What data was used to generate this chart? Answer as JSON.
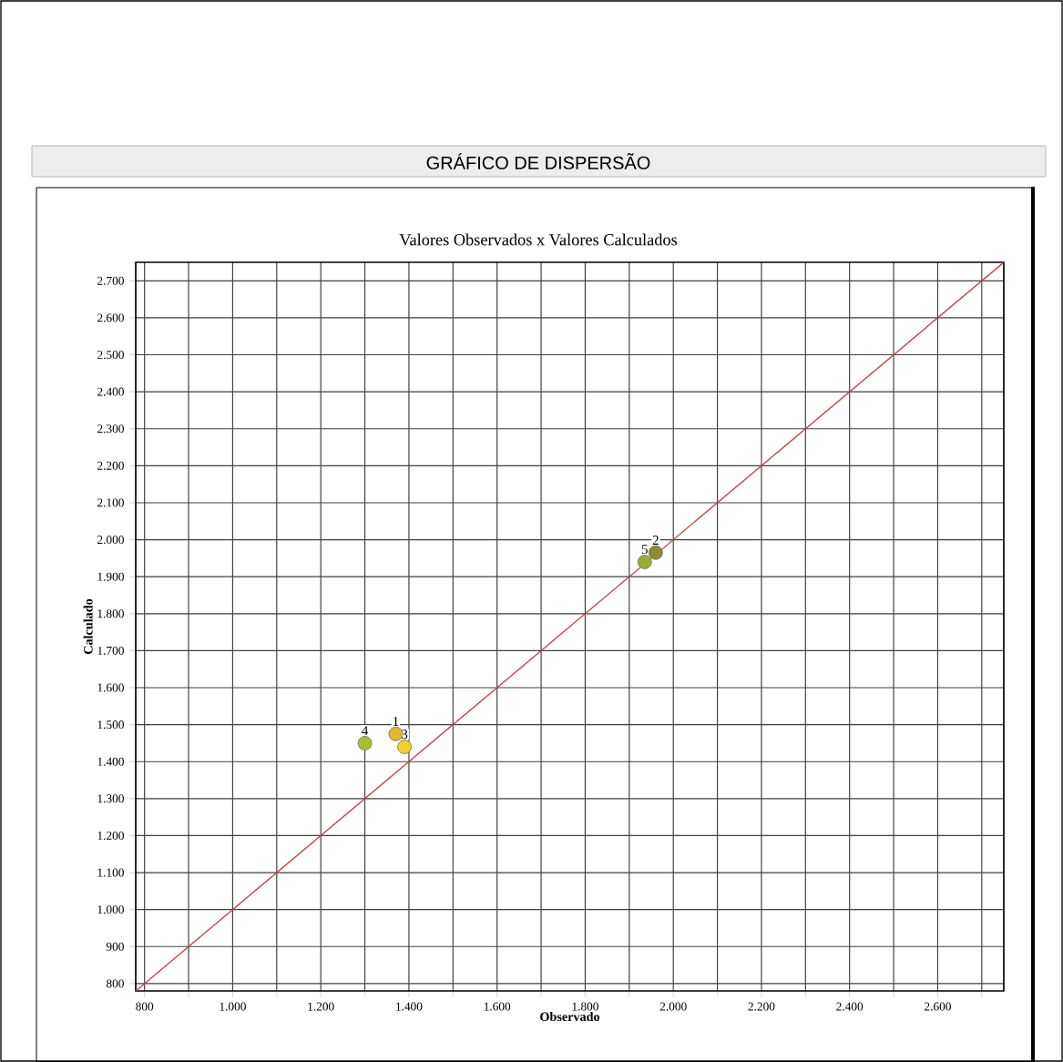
{
  "chart_data": {
    "type": "scatter",
    "title": "GRÁFICO DE DISPERSÃO",
    "subtitle": "Valores Observados x Valores Calculados",
    "xlabel": "Observado",
    "ylabel": "Calculado",
    "xlim": [
      780,
      2750
    ],
    "ylim": [
      780,
      2750
    ],
    "xticks": [
      800,
      {
        "value": 900,
        "label": null
      },
      {
        "value": 1000,
        "label": "1.000"
      },
      {
        "value": 1100,
        "label": null
      },
      {
        "value": 1200,
        "label": "1.200"
      },
      {
        "value": 1300,
        "label": null
      },
      {
        "value": 1400,
        "label": "1.400"
      },
      {
        "value": 1500,
        "label": null
      },
      {
        "value": 1600,
        "label": "1.600"
      },
      {
        "value": 1700,
        "label": null
      },
      {
        "value": 1800,
        "label": "1.800"
      },
      {
        "value": 1900,
        "label": null
      },
      {
        "value": 2000,
        "label": "2.000"
      },
      {
        "value": 2100,
        "label": null
      },
      {
        "value": 2200,
        "label": "2.200"
      },
      {
        "value": 2300,
        "label": null
      },
      {
        "value": 2400,
        "label": "2.400"
      },
      {
        "value": 2500,
        "label": null
      },
      {
        "value": 2600,
        "label": "2.600"
      },
      {
        "value": 2700,
        "label": null
      }
    ],
    "yticks": [
      800,
      900,
      {
        "value": 1000,
        "label": "1.000"
      },
      {
        "value": 1100,
        "label": "1.100"
      },
      {
        "value": 1200,
        "label": "1.200"
      },
      {
        "value": 1300,
        "label": "1.300"
      },
      {
        "value": 1400,
        "label": "1.400"
      },
      {
        "value": 1500,
        "label": "1.500"
      },
      {
        "value": 1600,
        "label": "1.600"
      },
      {
        "value": 1700,
        "label": "1.700"
      },
      {
        "value": 1800,
        "label": "1.800"
      },
      {
        "value": 1900,
        "label": "1.900"
      },
      {
        "value": 2000,
        "label": "2.000"
      },
      {
        "value": 2100,
        "label": "2.100"
      },
      {
        "value": 2200,
        "label": "2.200"
      },
      {
        "value": 2300,
        "label": "2.300"
      },
      {
        "value": 2400,
        "label": "2.400"
      },
      {
        "value": 2500,
        "label": "2.500"
      },
      {
        "value": 2600,
        "label": "2.600"
      },
      {
        "value": 2700,
        "label": "2.700"
      }
    ],
    "grid": true,
    "series": [
      {
        "type": "line",
        "marker": "none",
        "x": [
          780,
          2750
        ],
        "values": [
          780,
          2750
        ],
        "color": "#c83c3c"
      },
      {
        "marker": "circle",
        "x": [
          1370,
          1960,
          1390,
          1300,
          1935
        ],
        "values": [
          1475,
          1965,
          1440,
          1450,
          1940
        ],
        "colors": [
          "#e0b828",
          "#8c8c28",
          "#f0d030",
          "#a8c030",
          "#98b030"
        ]
      }
    ],
    "annotations": [
      {
        "text": "1",
        "x": 1370,
        "y": 1475
      },
      {
        "text": "2",
        "x": 1960,
        "y": 1965
      },
      {
        "text": "3",
        "x": 1390,
        "y": 1440
      },
      {
        "text": "4",
        "x": 1300,
        "y": 1450
      },
      {
        "text": "5",
        "x": 1935,
        "y": 1940
      }
    ]
  }
}
